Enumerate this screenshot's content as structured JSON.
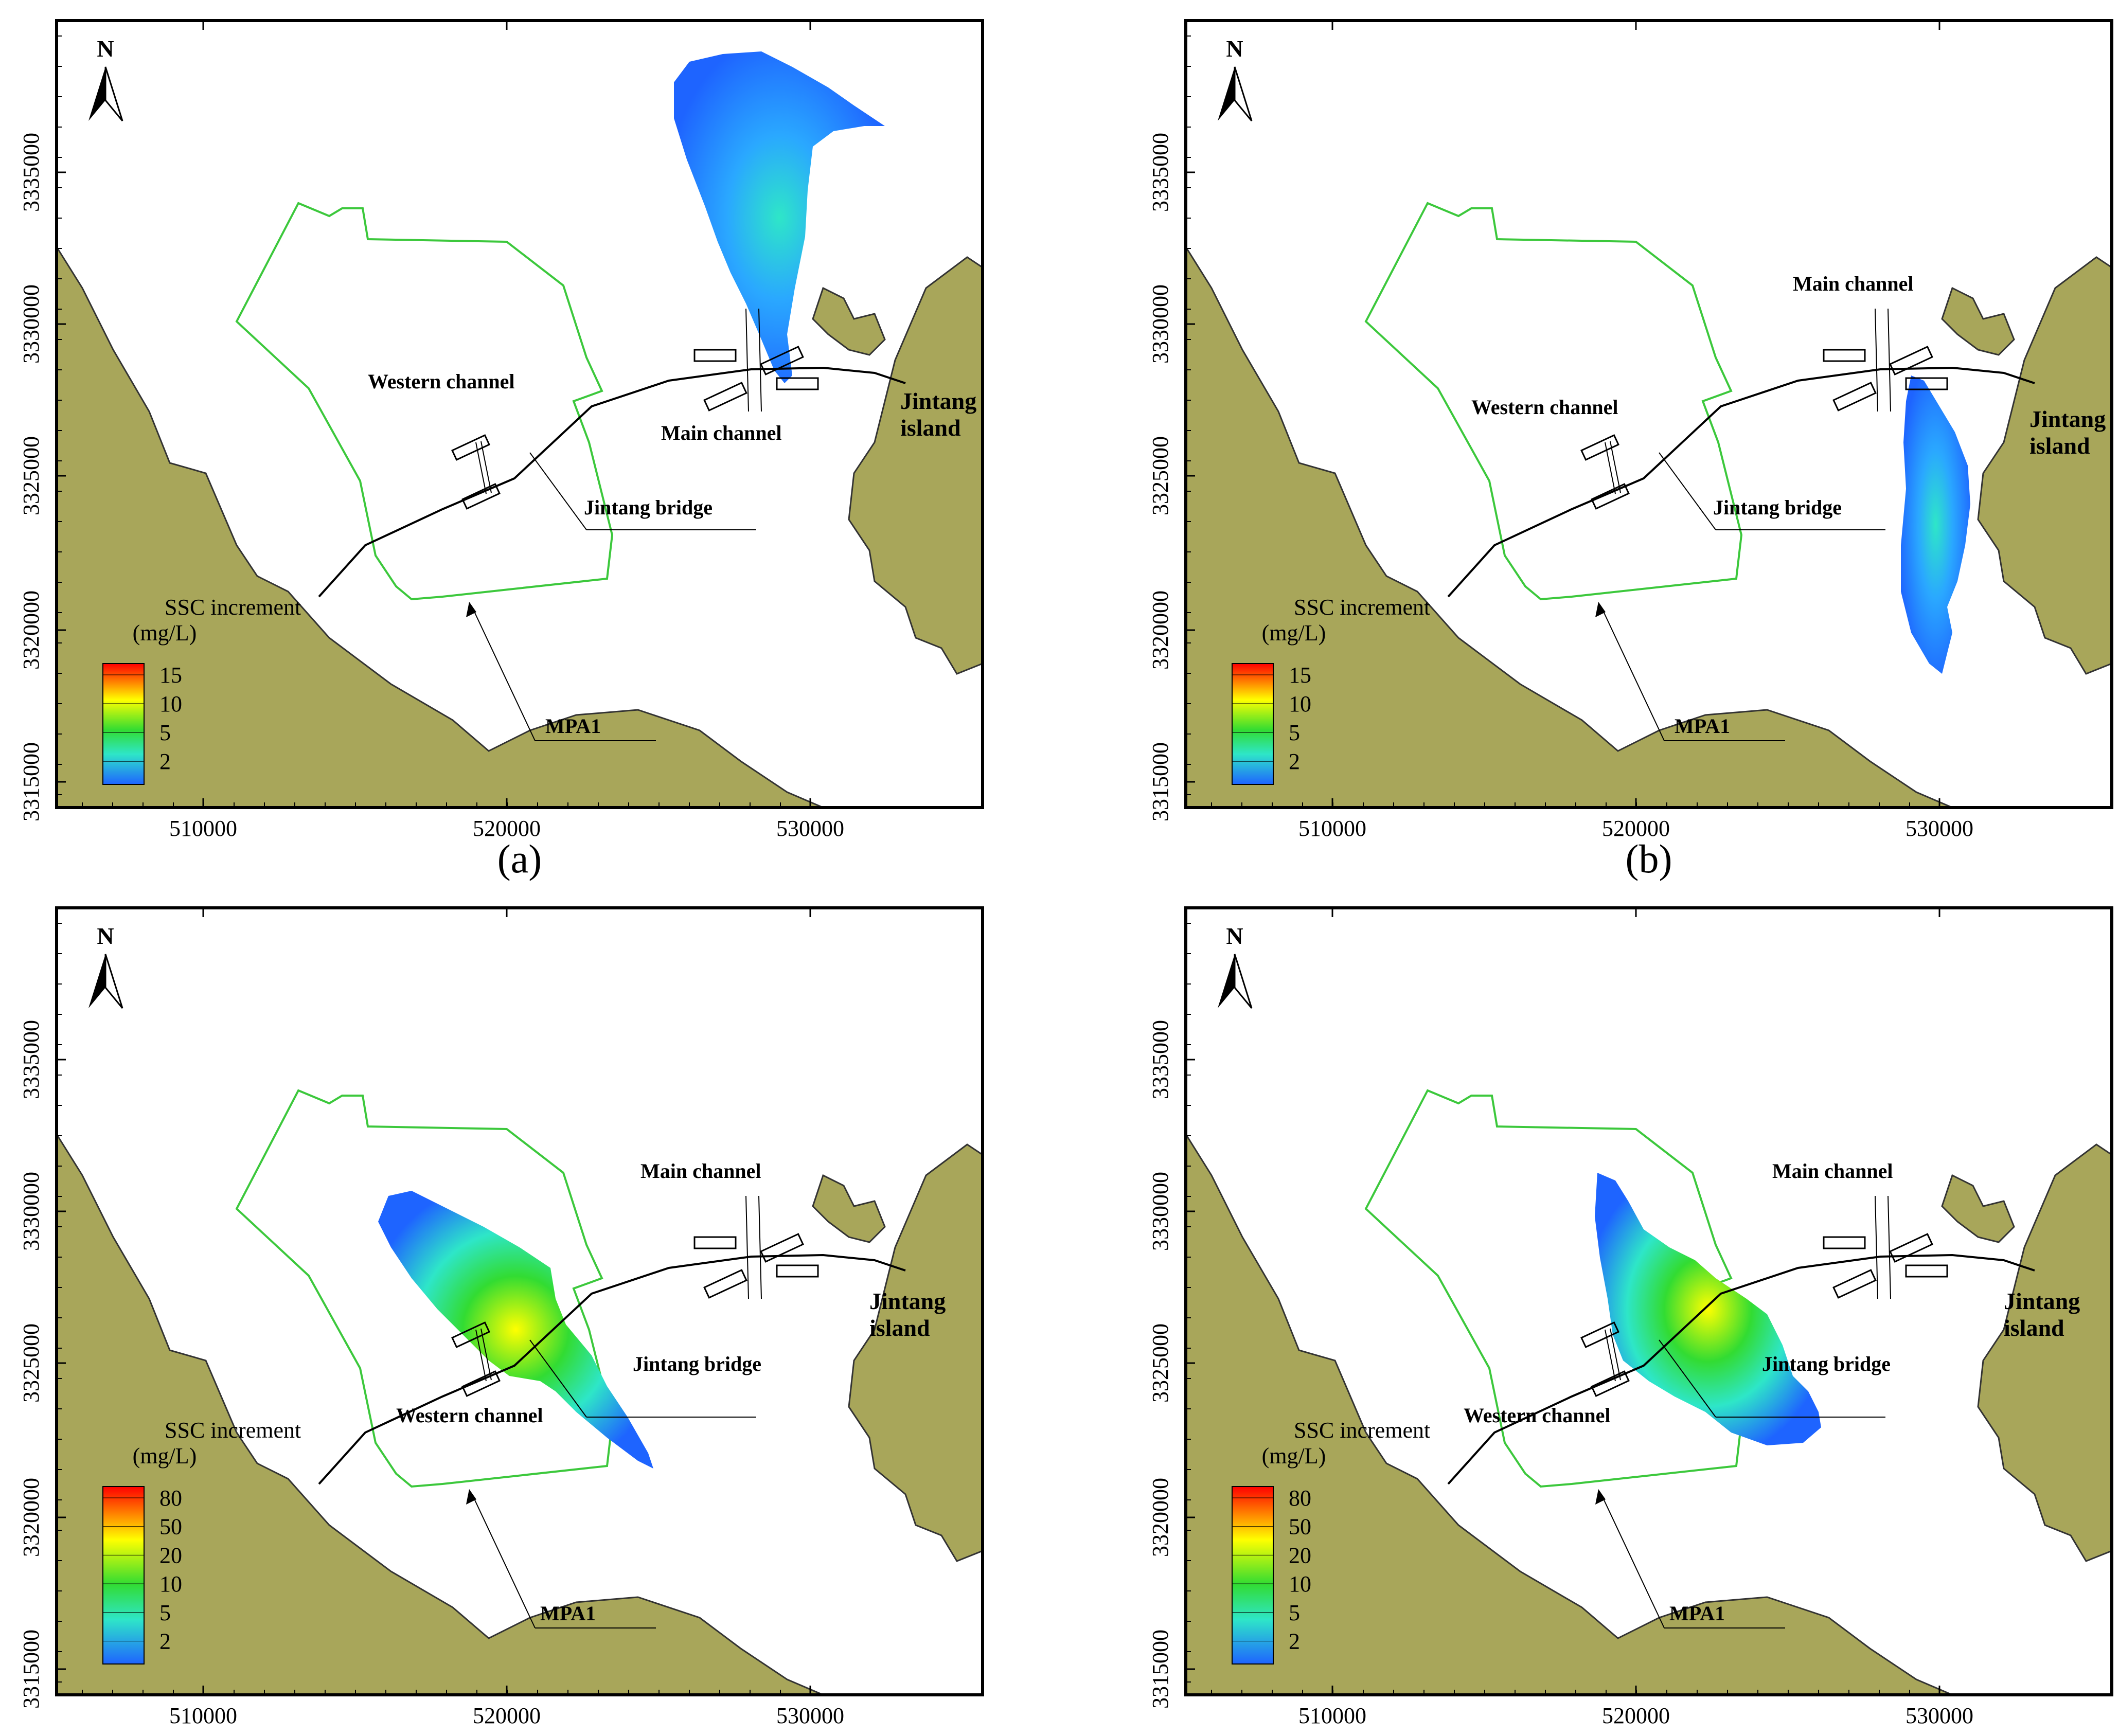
{
  "panels": [
    {
      "id": "a",
      "caption": "(a)",
      "x_ticks": [
        "510000",
        "520000",
        "530000"
      ],
      "y_ticks": [
        "3315000",
        "3320000",
        "3325000",
        "3330000",
        "3335000"
      ],
      "north": "N",
      "legend": {
        "title": [
          "SSC increment",
          "(mg/L)"
        ],
        "labels": [
          "15",
          "10",
          "5",
          "2"
        ]
      },
      "labels": {
        "western_channel": "Western channel",
        "main_channel": "Main channel",
        "jintang_bridge": "Jintang bridge",
        "jintang_island": [
          "Jintang",
          "island"
        ],
        "mpa": "MPA1"
      }
    },
    {
      "id": "b",
      "caption": "(b)",
      "x_ticks": [
        "510000",
        "520000",
        "530000"
      ],
      "y_ticks": [
        "3315000",
        "3320000",
        "3325000",
        "3330000",
        "3335000"
      ],
      "north": "N",
      "legend": {
        "title": [
          "SSC increment",
          "(mg/L)"
        ],
        "labels": [
          "15",
          "10",
          "5",
          "2"
        ]
      },
      "labels": {
        "western_channel": "Western channel",
        "main_channel": "Main channel",
        "jintang_bridge": "Jintang bridge",
        "jintang_island": [
          "Jintang",
          "island"
        ],
        "mpa": "MPA1"
      }
    },
    {
      "id": "c",
      "caption": "",
      "x_ticks": [
        "510000",
        "520000",
        "530000"
      ],
      "y_ticks": [
        "3315000",
        "3320000",
        "3325000",
        "3330000",
        "3335000"
      ],
      "north": "N",
      "legend": {
        "title": [
          "SSC increment",
          "(mg/L)"
        ],
        "labels": [
          "80",
          "50",
          "20",
          "10",
          "5",
          "2"
        ]
      },
      "labels": {
        "western_channel": "Western channel",
        "main_channel": "Main channel",
        "jintang_bridge": "Jintang bridge",
        "jintang_island": [
          "Jintang",
          "island"
        ],
        "mpa": "MPA1"
      }
    },
    {
      "id": "d",
      "caption": "",
      "x_ticks": [
        "510000",
        "520000",
        "530000"
      ],
      "y_ticks": [
        "3315000",
        "3320000",
        "3325000",
        "3330000",
        "3335000"
      ],
      "north": "N",
      "legend": {
        "title": [
          "SSC increment",
          "(mg/L)"
        ],
        "labels": [
          "80",
          "50",
          "20",
          "10",
          "5",
          "2"
        ]
      },
      "labels": {
        "western_channel": "Western channel",
        "main_channel": "Main channel",
        "jintang_bridge": "Jintang bridge",
        "jintang_island": [
          "Jintang",
          "island"
        ],
        "mpa": "MPA1"
      }
    }
  ],
  "colors": {
    "land": "#a8a65a",
    "mpa_boundary": "#3cc83c",
    "plume_low": "#1e64ff",
    "plume_mid": "#2ee6c8",
    "plume_green": "#32dc32",
    "plume_yellow": "#ffff00",
    "plume_high": "#ff0000"
  }
}
